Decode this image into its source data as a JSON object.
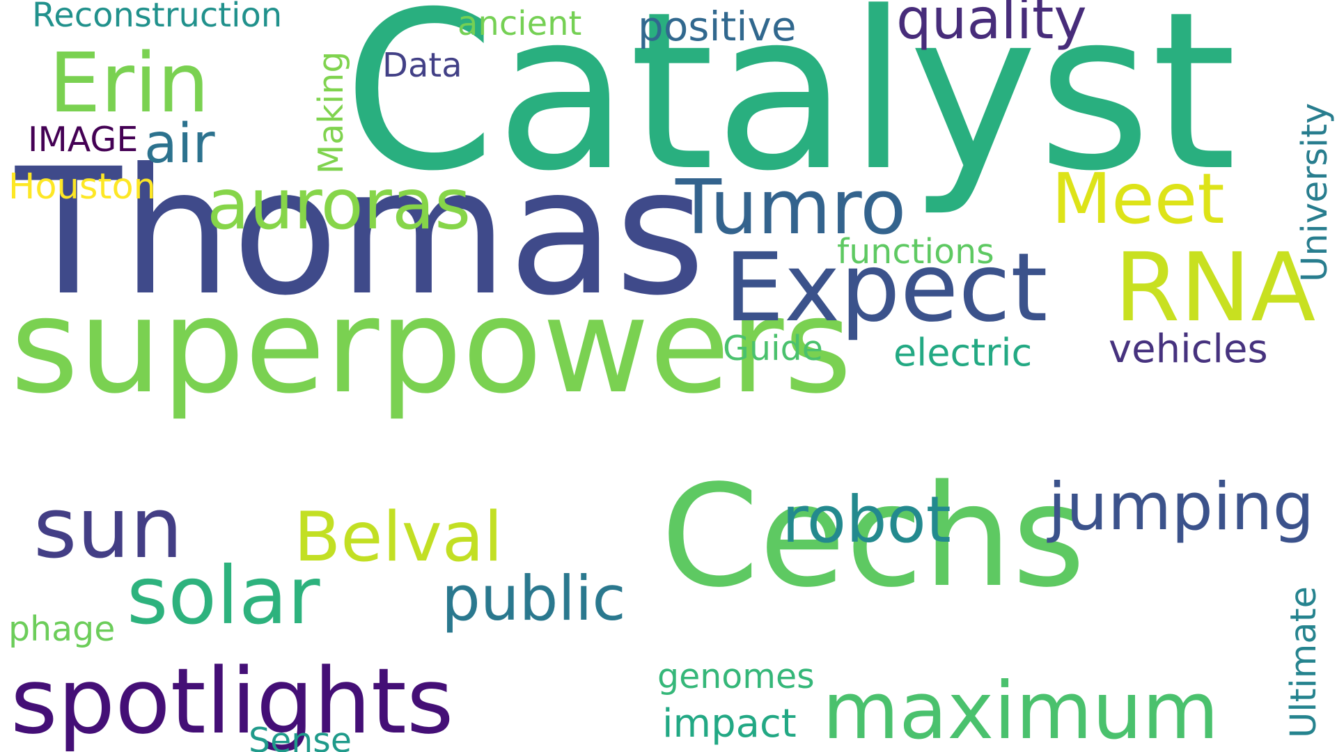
{
  "words": [
    {
      "text": "Catalyst",
      "color": "#29af7f"
    },
    {
      "text": "Thomas",
      "color": "#3f4a8a"
    },
    {
      "text": "superpowers",
      "color": "#7ad151"
    },
    {
      "text": "Cechs",
      "color": "#5ec962"
    },
    {
      "text": "Erin",
      "color": "#7ad151"
    },
    {
      "text": "auroras",
      "color": "#86d549"
    },
    {
      "text": "Tumro",
      "color": "#33638d"
    },
    {
      "text": "Meet",
      "color": "#dde318"
    },
    {
      "text": "Expect",
      "color": "#3b528b"
    },
    {
      "text": "RNA",
      "color": "#c8e020"
    },
    {
      "text": "sun",
      "color": "#433e85"
    },
    {
      "text": "Belval",
      "color": "#c2df23"
    },
    {
      "text": "robot",
      "color": "#23898e"
    },
    {
      "text": "jumping",
      "color": "#3b528b"
    },
    {
      "text": "solar",
      "color": "#2db27d"
    },
    {
      "text": "public",
      "color": "#2a788e"
    },
    {
      "text": "spotlights",
      "color": "#440f76"
    },
    {
      "text": "maximum",
      "color": "#4ac16d"
    },
    {
      "text": "Reconstruction",
      "color": "#21918c"
    },
    {
      "text": "ancient",
      "color": "#75d054"
    },
    {
      "text": "positive",
      "color": "#31688e"
    },
    {
      "text": "quality",
      "color": "#472c7a"
    },
    {
      "text": "Data",
      "color": "#424086"
    },
    {
      "text": "Making",
      "color": "#7fd34e"
    },
    {
      "text": "air",
      "color": "#2c728e"
    },
    {
      "text": "IMAGE",
      "color": "#440154"
    },
    {
      "text": "Houston",
      "color": "#fde725"
    },
    {
      "text": "University",
      "color": "#287d8e"
    },
    {
      "text": "functions",
      "color": "#5ec962"
    },
    {
      "text": "Guide",
      "color": "#4ac16d"
    },
    {
      "text": "electric",
      "color": "#23a983"
    },
    {
      "text": "vehicles",
      "color": "#46327e"
    },
    {
      "text": "Ultimate",
      "color": "#25838e"
    },
    {
      "text": "phage",
      "color": "#6ccd5a"
    },
    {
      "text": "genomes",
      "color": "#35b779"
    },
    {
      "text": "impact",
      "color": "#22a884"
    },
    {
      "text": "Sense",
      "color": "#1f9a8a"
    }
  ]
}
